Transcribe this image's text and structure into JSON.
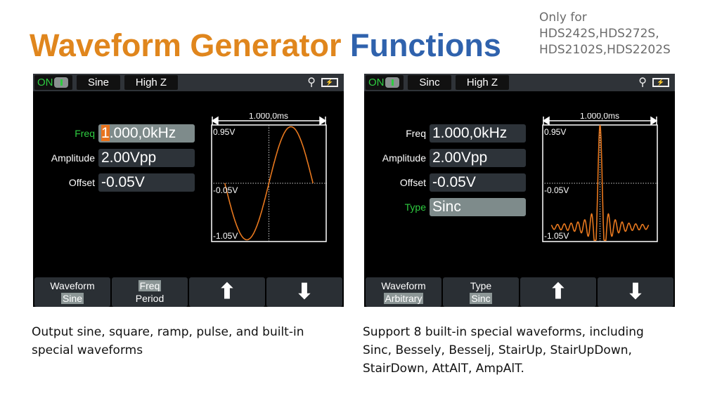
{
  "header": {
    "title_part1": "Waveform Generator",
    "title_part2": "Functions",
    "note_line1": "Only for",
    "note_line2": "HDS242S,HDS272S,",
    "note_line3": "HDS2102S,HDS2202S",
    "colors": {
      "orange": "#e0861d",
      "blue": "#2f62ad"
    }
  },
  "screens": [
    {
      "status": {
        "on": "ON",
        "waveform": "Sine",
        "impedance": "High Z",
        "icons": [
          "usb-icon",
          "battery-charging-icon"
        ]
      },
      "fields": [
        {
          "label": "Freq",
          "value": "1.000,0kHz",
          "cursor": "1",
          "rest": ".000,0kHz",
          "active": true
        },
        {
          "label": "Amplitude",
          "value": "2.00Vpp"
        },
        {
          "label": "Offset",
          "value": "-0.05V"
        }
      ],
      "graph": {
        "time_span": "1.000,0ms",
        "top": "0.95V",
        "mid": "-0.05V",
        "bottom": "-1.05V",
        "waveform": "sine"
      },
      "softkeys": [
        {
          "label": "Waveform",
          "value": "Sine"
        },
        {
          "label": "Freq",
          "value": "Period"
        },
        {
          "icon": "arrow-up-icon",
          "glyph": "⬆"
        },
        {
          "icon": "arrow-down-icon",
          "glyph": "⬇"
        }
      ],
      "caption": "Output sine, square, ramp, pulse, and built-in special waveforms"
    },
    {
      "status": {
        "on": "ON",
        "waveform": "Sinc",
        "impedance": "High Z",
        "icons": [
          "usb-icon",
          "battery-charging-icon"
        ]
      },
      "fields": [
        {
          "label": "Freq",
          "value": "1.000,0kHz"
        },
        {
          "label": "Amplitude",
          "value": "2.00Vpp"
        },
        {
          "label": "Offset",
          "value": "-0.05V"
        },
        {
          "label": "Type",
          "value": "Sinc",
          "active": true
        }
      ],
      "graph": {
        "time_span": "1.000,0ms",
        "top": "0.95V",
        "mid": "-0.05V",
        "bottom": "-1.05V",
        "waveform": "sinc"
      },
      "softkeys": [
        {
          "label": "Waveform",
          "value": "Arbitrary"
        },
        {
          "label": "Type",
          "value": "Sinc"
        },
        {
          "icon": "arrow-up-icon",
          "glyph": "⬆"
        },
        {
          "icon": "arrow-down-icon",
          "glyph": "⬇"
        }
      ],
      "caption": "Support 8 built-in special waveforms, including Sinc, Bessely, Besselj, StairUp, StairUpDown, StairDown, AttAlT, AmpAlT."
    }
  ]
}
